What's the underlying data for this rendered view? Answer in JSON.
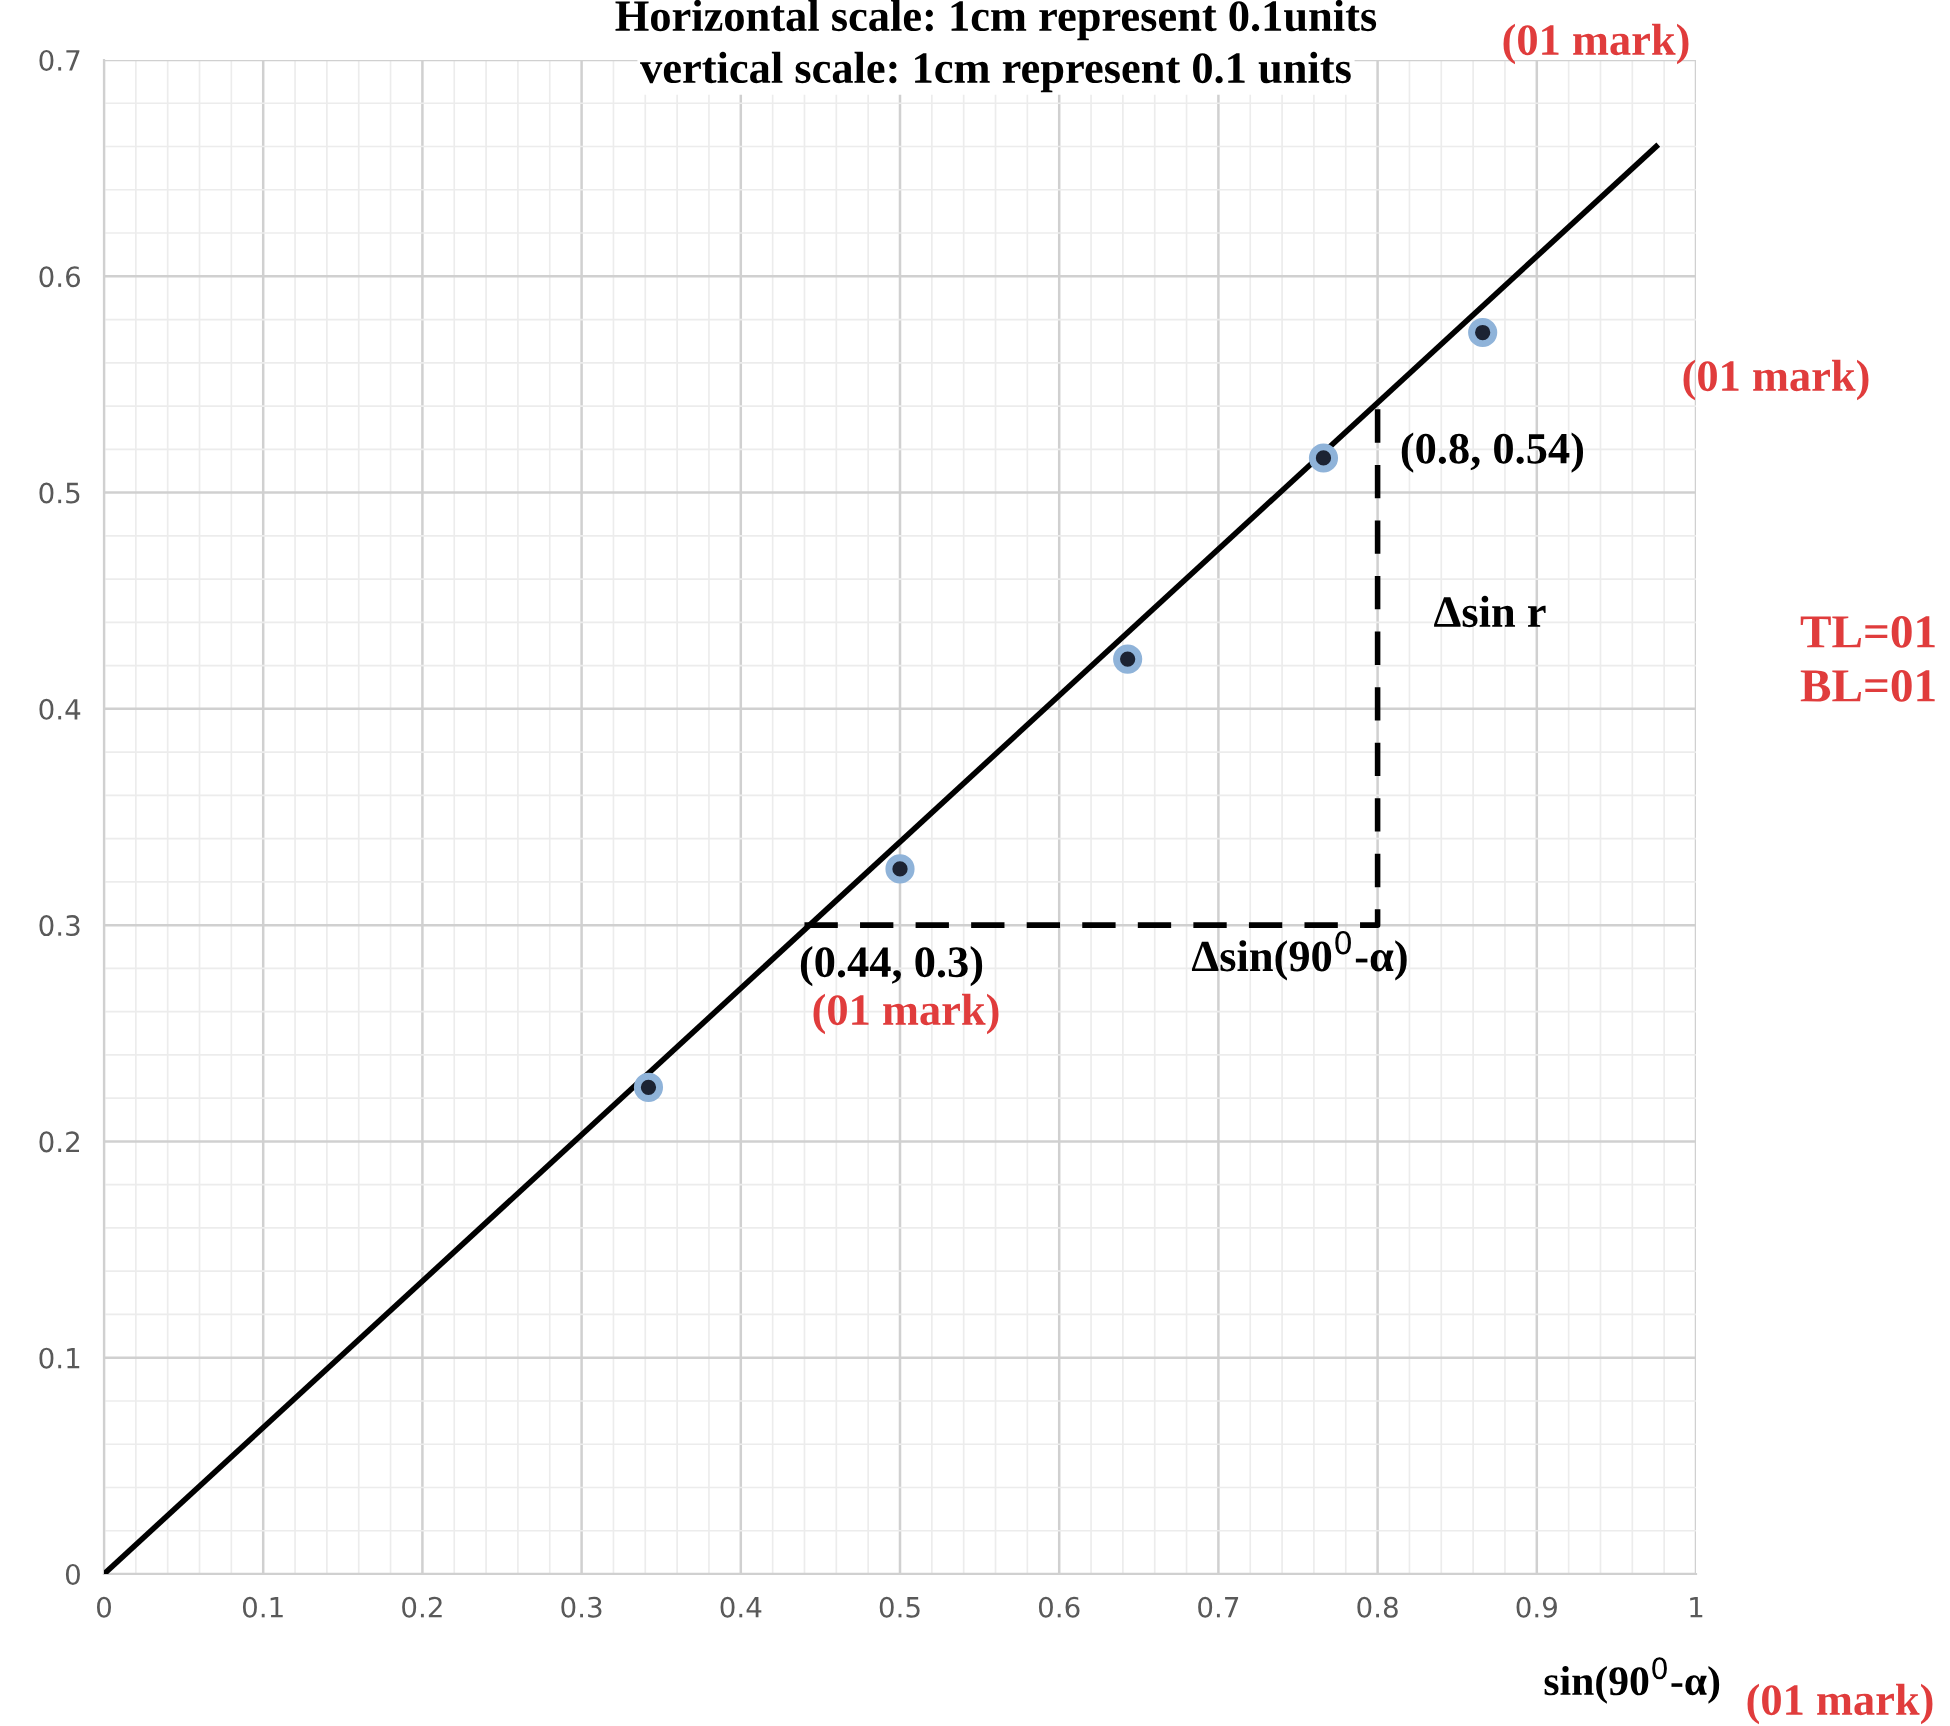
{
  "chart_data": {
    "type": "scatter",
    "xlabel": "sin(90$^{0}$-α)",
    "xlim": [
      0,
      1
    ],
    "ylim": [
      0,
      0.7
    ],
    "xticks": [
      0,
      0.1,
      0.2,
      0.3,
      0.4,
      0.5,
      0.6,
      0.7,
      0.8,
      0.9,
      1
    ],
    "yticks": [
      0,
      0.1,
      0.2,
      0.3,
      0.4,
      0.5,
      0.6,
      0.7
    ],
    "grid": true,
    "marker": "circle",
    "series": [
      {
        "color": "#1c2333",
        "x": [
          0.342,
          0.5,
          0.643,
          0.766,
          0.866
        ],
        "values": [
          0.225,
          0.326,
          0.423,
          0.516,
          0.574
        ]
      },
      {
        "type": "line",
        "color": "#000000",
        "marker": "none",
        "x": [
          0,
          0.975
        ],
        "values": [
          0,
          0.66
        ]
      },
      {
        "type": "line",
        "color": "#000000",
        "marker": "none",
        "line_style": "dashed",
        "x": [
          0.44,
          0.8,
          0.8
        ],
        "values": [
          0.3,
          0.3,
          0.54
        ]
      }
    ],
    "annotations": [
      "Horizontal scale: 1cm represent 0.1units",
      "vertical scale: 1cm represent 0.1 units",
      "(01 mark)",
      {
        "text": "(0.8, 0.54)",
        "x": 0.8,
        "y": 0.54
      },
      "(01 mark)",
      "Δsin r",
      "TL=01",
      "BL=01",
      {
        "text": "(0.44, 0.3)",
        "x": 0.44,
        "y": 0.3
      },
      "(01 mark)",
      "Δsin(90$^{0}$-α)",
      "(01 mark)"
    ]
  }
}
